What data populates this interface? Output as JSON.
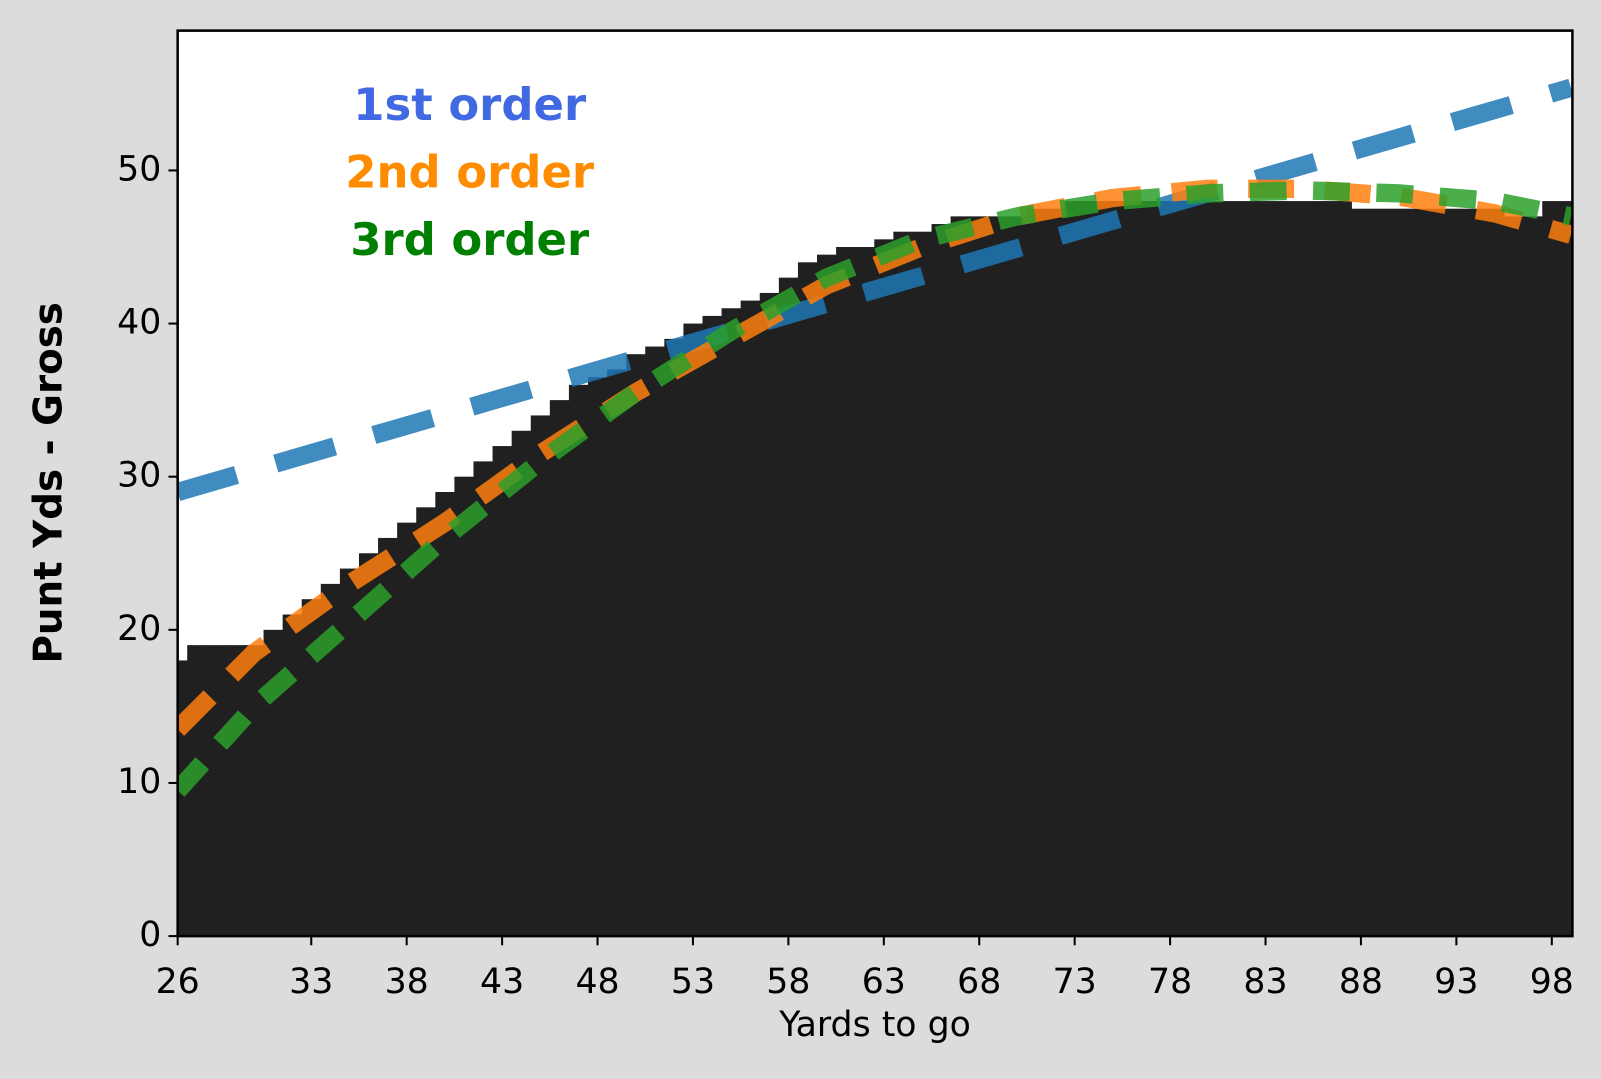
{
  "chart_data": {
    "type": "bar_with_fits",
    "x_label": "Yards to go",
    "y_label": "Punt Yds - Gross",
    "xlim": [
      26,
      99.08
    ],
    "ylim": [
      0,
      59.13
    ],
    "xticks": [
      26,
      33,
      38,
      43,
      48,
      53,
      58,
      63,
      68,
      73,
      78,
      83,
      88,
      93,
      98
    ],
    "yticks": [
      0,
      10,
      20,
      30,
      40,
      50
    ],
    "bars": {
      "color": "#202020",
      "x": [
        26,
        27,
        28,
        29,
        30,
        31,
        32,
        33,
        34,
        35,
        36,
        37,
        38,
        39,
        40,
        41,
        42,
        43,
        44,
        45,
        46,
        47,
        48,
        49,
        50,
        51,
        52,
        53,
        54,
        55,
        56,
        57,
        58,
        59,
        60,
        61,
        62,
        63,
        64,
        65,
        66,
        67,
        68,
        69,
        70,
        71,
        72,
        73,
        74,
        75,
        76,
        77,
        78,
        79,
        80,
        81,
        82,
        83,
        84,
        85,
        86,
        87,
        88,
        89,
        90,
        91,
        92,
        93,
        94,
        95,
        96,
        97,
        98,
        99
      ],
      "values": [
        18,
        19,
        19,
        19,
        19,
        20,
        21,
        22,
        23,
        24,
        25,
        26,
        27,
        28,
        29,
        30,
        31,
        32,
        33,
        34,
        35,
        36,
        36.5,
        37,
        38,
        38.5,
        39,
        40,
        40.5,
        41,
        41.5,
        42,
        43,
        44,
        44.5,
        45,
        45,
        45.5,
        46,
        46,
        46.5,
        47,
        47,
        47,
        47,
        47.5,
        47.5,
        48,
        48,
        48,
        48,
        48,
        48,
        48,
        48,
        48,
        48,
        48,
        48,
        48,
        48,
        48,
        47.5,
        47.5,
        47.5,
        47.5,
        47.5,
        47.5,
        47.5,
        47.5,
        47,
        47,
        48,
        48
      ]
    },
    "series": [
      {
        "name": "1st order",
        "color": "#1f77b4",
        "label_color": "#4169e1",
        "x": [
          26,
          99
        ],
        "values": [
          29,
          55.4
        ]
      },
      {
        "name": "2nd order",
        "color": "#ff7f0e",
        "label_color": "#ff8c00",
        "x": [
          26,
          30,
          35,
          40,
          45,
          50,
          55,
          60,
          65,
          70,
          75,
          80,
          85,
          90,
          95,
          99
        ],
        "values": [
          13.5,
          18.5,
          23,
          27,
          31.5,
          35.5,
          39,
          42.5,
          45,
          47,
          48.2,
          48.8,
          48.8,
          48.3,
          47.2,
          45.8
        ]
      },
      {
        "name": "3rd order",
        "color": "#2ca02c",
        "label_color": "#008000",
        "x": [
          26,
          30,
          35,
          40,
          45,
          50,
          55,
          60,
          65,
          70,
          75,
          80,
          85,
          90,
          95,
          99
        ],
        "values": [
          9.5,
          15,
          20.5,
          26,
          31,
          35.5,
          39.5,
          43,
          45.5,
          47,
          48,
          48.5,
          48.7,
          48.5,
          48,
          47
        ]
      }
    ]
  }
}
